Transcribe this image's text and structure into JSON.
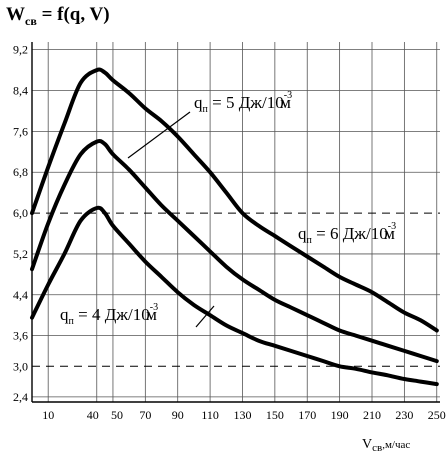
{
  "chart_data": {
    "type": "line",
    "title": {
      "main": "W",
      "sub": "св",
      "rest": " = f(q, V)"
    },
    "xlabel": {
      "main": "V",
      "sub": "св",
      "unit": ",м/час"
    },
    "ylabel": "",
    "xlim": [
      0,
      252
    ],
    "ylim": [
      2.3,
      9.35
    ],
    "x_ticks": [
      10,
      40,
      50,
      70,
      90,
      110,
      130,
      150,
      170,
      190,
      210,
      230,
      250
    ],
    "x_tick_labels": [
      "10",
      "40",
      "50",
      "70",
      "90",
      "110",
      "130",
      "150",
      "170",
      "190",
      "210",
      "230",
      "250"
    ],
    "y_ticks": [
      2.4,
      3.0,
      3.6,
      4.4,
      5.2,
      6.0,
      6.8,
      7.6,
      8.4,
      9.2
    ],
    "y_tick_labels": [
      "2,4",
      "3,0",
      "3,6",
      "4,4",
      "5,2",
      "6,0",
      "6,8",
      "7,6",
      "8,4",
      "9,2"
    ],
    "x_grid": [
      10,
      40,
      50,
      70,
      90,
      110,
      130,
      150,
      170,
      190,
      210,
      230,
      250
    ],
    "y_grid": [
      2.4,
      3.6,
      4.4,
      5.2,
      6.8,
      7.6,
      8.4,
      9.2
    ],
    "dashed_lines": [
      6.0,
      3.0
    ],
    "grid": true,
    "series": [
      {
        "label": {
          "q": "q",
          "sub": "п",
          "mid": " = 6 Дж/10",
          "sup": "-3",
          "unit": "м"
        },
        "x": [
          0,
          10,
          20,
          30,
          40,
          45,
          50,
          60,
          70,
          80,
          90,
          100,
          110,
          120,
          130,
          140,
          150,
          160,
          170,
          180,
          190,
          200,
          210,
          220,
          230,
          240,
          250
        ],
        "y": [
          6.0,
          6.9,
          7.75,
          8.55,
          8.8,
          8.75,
          8.6,
          8.35,
          8.05,
          7.8,
          7.5,
          7.15,
          6.8,
          6.4,
          6.0,
          5.75,
          5.55,
          5.35,
          5.15,
          4.95,
          4.75,
          4.6,
          4.45,
          4.25,
          4.05,
          3.9,
          3.7
        ]
      },
      {
        "label": {
          "q": "q",
          "sub": "п",
          "mid": " = 5 Дж/10",
          "sup": "-3",
          "unit": "м"
        },
        "x": [
          0,
          10,
          20,
          30,
          40,
          45,
          50,
          60,
          70,
          80,
          90,
          100,
          110,
          120,
          130,
          140,
          150,
          160,
          170,
          180,
          190,
          200,
          210,
          220,
          230,
          240,
          250
        ],
        "y": [
          4.9,
          5.8,
          6.55,
          7.15,
          7.4,
          7.35,
          7.15,
          6.85,
          6.5,
          6.15,
          5.85,
          5.55,
          5.25,
          4.95,
          4.7,
          4.5,
          4.3,
          4.15,
          4.0,
          3.85,
          3.7,
          3.6,
          3.5,
          3.4,
          3.3,
          3.2,
          3.1
        ]
      },
      {
        "label": {
          "q": "q",
          "sub": "п",
          "mid": " = 4 Дж/10",
          "sup": "-3",
          "unit": "м"
        },
        "x": [
          0,
          10,
          20,
          30,
          40,
          45,
          50,
          60,
          70,
          80,
          90,
          100,
          110,
          120,
          130,
          140,
          150,
          160,
          170,
          180,
          190,
          200,
          210,
          220,
          230,
          240,
          250
        ],
        "y": [
          3.95,
          4.6,
          5.2,
          5.85,
          6.1,
          6.0,
          5.75,
          5.4,
          5.05,
          4.75,
          4.45,
          4.2,
          4.0,
          3.8,
          3.65,
          3.5,
          3.4,
          3.3,
          3.2,
          3.1,
          3.0,
          2.95,
          2.88,
          2.82,
          2.75,
          2.7,
          2.65
        ]
      }
    ]
  }
}
